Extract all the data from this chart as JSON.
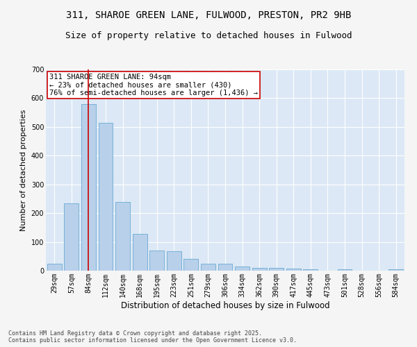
{
  "title": "311, SHAROE GREEN LANE, FULWOOD, PRESTON, PR2 9HB",
  "subtitle": "Size of property relative to detached houses in Fulwood",
  "xlabel": "Distribution of detached houses by size in Fulwood",
  "ylabel": "Number of detached properties",
  "categories": [
    "29sqm",
    "57sqm",
    "84sqm",
    "112sqm",
    "140sqm",
    "168sqm",
    "195sqm",
    "223sqm",
    "251sqm",
    "279sqm",
    "306sqm",
    "334sqm",
    "362sqm",
    "390sqm",
    "417sqm",
    "445sqm",
    "473sqm",
    "501sqm",
    "528sqm",
    "556sqm",
    "584sqm"
  ],
  "values": [
    25,
    235,
    580,
    515,
    240,
    128,
    70,
    68,
    40,
    25,
    25,
    15,
    10,
    10,
    8,
    5,
    0,
    5,
    0,
    0,
    5
  ],
  "bar_color": "#b8d0ea",
  "bar_edge_color": "#6aaad4",
  "vline_x": 2,
  "vline_color": "#cc0000",
  "annotation_text": "311 SHAROE GREEN LANE: 94sqm\n← 23% of detached houses are smaller (430)\n76% of semi-detached houses are larger (1,436) →",
  "annotation_box_color": "#ffffff",
  "annotation_box_edge": "#cc0000",
  "ylim": [
    0,
    700
  ],
  "yticks": [
    0,
    100,
    200,
    300,
    400,
    500,
    600,
    700
  ],
  "background_color": "#dce8f5",
  "fig_background_color": "#f5f5f5",
  "grid_color": "#ffffff",
  "footer_text": "Contains HM Land Registry data © Crown copyright and database right 2025.\nContains public sector information licensed under the Open Government Licence v3.0.",
  "title_fontsize": 10,
  "subtitle_fontsize": 9,
  "xlabel_fontsize": 8.5,
  "ylabel_fontsize": 8,
  "tick_fontsize": 7,
  "annotation_fontsize": 7.5,
  "footer_fontsize": 6
}
